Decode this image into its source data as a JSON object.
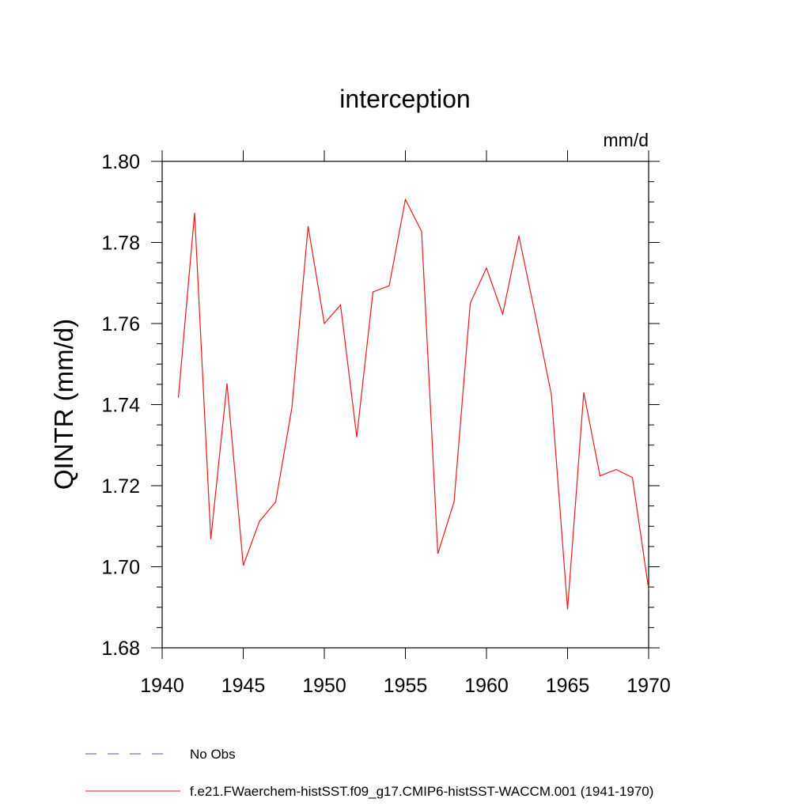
{
  "chart_data": {
    "type": "line",
    "title": "interception",
    "units": "mm/d",
    "ylabel": "QINTR  (mm/d)",
    "xlabel": "",
    "xlim": [
      1940,
      1970
    ],
    "ylim": [
      1.68,
      1.8
    ],
    "xticks": [
      1940,
      1945,
      1950,
      1955,
      1960,
      1965,
      1970
    ],
    "xtick_labels": [
      "1940",
      "1945",
      "1950",
      "1955",
      "1960",
      "1965",
      "1970"
    ],
    "yticks": [
      1.68,
      1.7,
      1.72,
      1.74,
      1.76,
      1.78,
      1.8
    ],
    "ytick_labels": [
      "1.68",
      "1.70",
      "1.72",
      "1.74",
      "1.76",
      "1.78",
      "1.80"
    ],
    "grid": false,
    "legend_position": "bottom-left, below plot",
    "legend": [
      {
        "label": "No Obs",
        "style": "dashed",
        "color": "#5a4fa8"
      },
      {
        "label": "f.e21.FWaerchem-histSST.f09_g17.CMIP6-histSST-WACCM.001 (1941-1970)",
        "style": "solid",
        "color": "#e8191b"
      }
    ],
    "series": [
      {
        "name": "f.e21.FWaerchem-histSST.f09_g17.CMIP6-histSST-WACCM.001 (1941-1970)",
        "color": "#e8191b",
        "x": [
          1941,
          1942,
          1943,
          1944,
          1945,
          1946,
          1947,
          1948,
          1949,
          1950,
          1951,
          1952,
          1953,
          1954,
          1955,
          1956,
          1957,
          1958,
          1959,
          1960,
          1961,
          1962,
          1963,
          1964,
          1965,
          1966,
          1967,
          1968,
          1969,
          1970
        ],
        "y": [
          1.7417,
          1.7873,
          1.7068,
          1.7452,
          1.7003,
          1.7112,
          1.716,
          1.7392,
          1.784,
          1.76,
          1.7646,
          1.732,
          1.7678,
          1.7693,
          1.7906,
          1.7827,
          1.7032,
          1.716,
          1.765,
          1.7737,
          1.7623,
          1.7816,
          1.7623,
          1.7425,
          1.6895,
          1.743,
          1.7224,
          1.724,
          1.722,
          1.6945
        ]
      }
    ]
  }
}
